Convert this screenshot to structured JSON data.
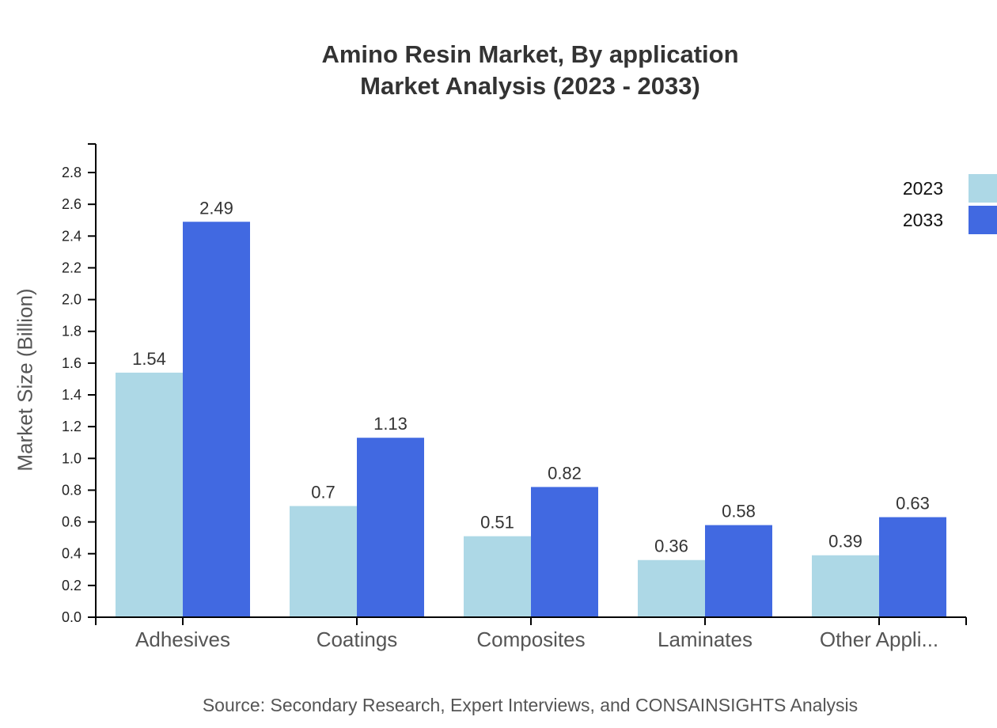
{
  "title": {
    "line1": "Amino Resin Market, By application",
    "line2": "Market Analysis (2023 - 2033)"
  },
  "y_axis_label": "Market Size (Billion)",
  "source": "Source: Secondary Research, Expert Interviews, and CONSAINSIGHTS Analysis",
  "legend": [
    {
      "label": "2023",
      "color": "#ADD8E6"
    },
    {
      "label": "2033",
      "color": "#4169E1"
    }
  ],
  "chart_data": {
    "type": "bar",
    "title": "Amino Resin Market, By application Market Analysis (2023 - 2033)",
    "xlabel": "",
    "ylabel": "Market Size (Billion)",
    "categories": [
      "Adhesives",
      "Coatings",
      "Composites",
      "Laminates",
      "Other Appli..."
    ],
    "series": [
      {
        "name": "2023",
        "color": "#ADD8E6",
        "values": [
          1.54,
          0.7,
          0.51,
          0.36,
          0.39
        ]
      },
      {
        "name": "2033",
        "color": "#4169E1",
        "values": [
          2.49,
          1.13,
          0.82,
          0.58,
          0.63
        ]
      }
    ],
    "y_ticks": [
      "0.0",
      "0.2",
      "0.4",
      "0.6",
      "0.8",
      "1.0",
      "1.2",
      "1.4",
      "1.6",
      "1.8",
      "2.0",
      "2.2",
      "2.4",
      "2.6",
      "2.8"
    ],
    "ylim": [
      0,
      2.98
    ],
    "grid": false,
    "legend_position": "top-right",
    "data_labels": true
  }
}
